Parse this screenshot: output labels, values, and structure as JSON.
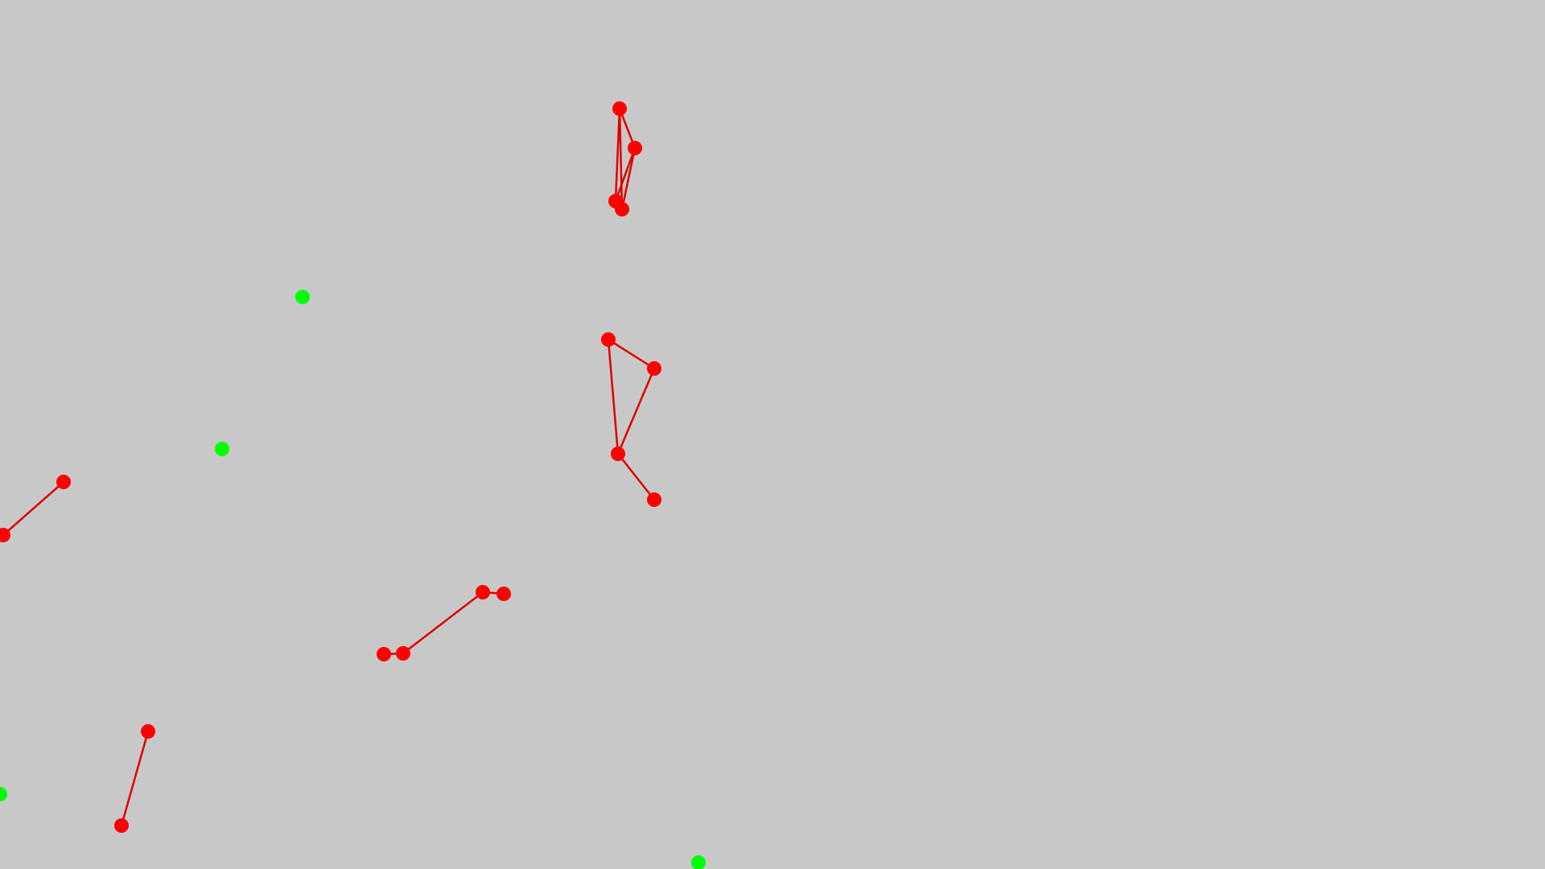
{
  "colors": {
    "background": "#c8c8c8",
    "red_node": "#ff0000",
    "red_link": "#e00000",
    "green_node": "#00ff00"
  },
  "red_nodes": [
    "red-node-1",
    "red-node-2",
    "red-node-3",
    "red-node-4",
    "red-node-5",
    "red-node-6",
    "red-node-7",
    "red-node-8",
    "red-node-9",
    "red-node-10",
    "red-node-11",
    "red-node-12",
    "red-node-13",
    "red-node-14",
    "red-node-15",
    "red-node-16"
  ],
  "green_nodes": [
    "green-node-1",
    "green-node-2",
    "green-node-3",
    "green-node-4"
  ]
}
